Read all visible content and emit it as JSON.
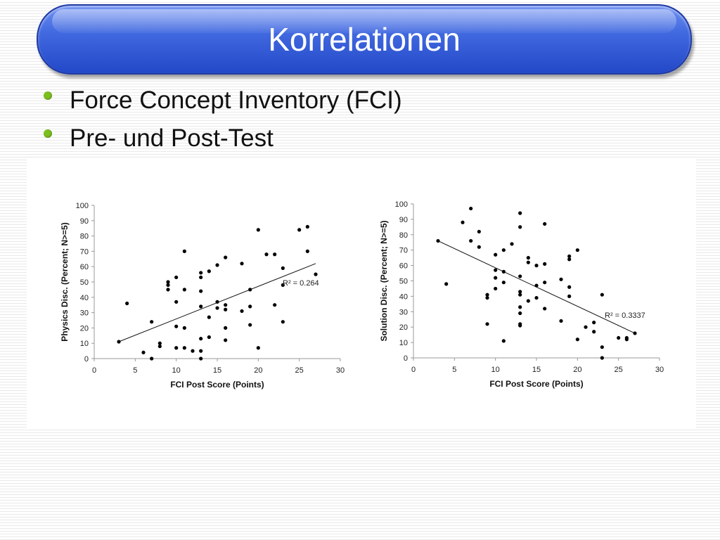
{
  "slide": {
    "title": "Korrelationen",
    "bullets": [
      "Force Concept Inventory (FCI)",
      "Pre- und Post-Test"
    ],
    "bullet_color": "#7dbf1f",
    "banner_color": "#3a5fd8"
  },
  "chart_data": [
    {
      "type": "scatter",
      "title": "",
      "xlabel": "FCI Post Score (Points)",
      "ylabel": "Physics Disc. (Percent; N>=5)",
      "xlim": [
        0,
        30
      ],
      "ylim": [
        0,
        100
      ],
      "xticks": [
        0,
        5,
        10,
        15,
        20,
        25,
        30
      ],
      "yticks": [
        0,
        10,
        20,
        30,
        40,
        50,
        60,
        70,
        80,
        90,
        100
      ],
      "grid": false,
      "annotation": "R² = 0.264",
      "trendline": {
        "x": [
          3,
          27
        ],
        "y": [
          11,
          62
        ]
      },
      "points": [
        [
          3,
          11
        ],
        [
          4,
          36
        ],
        [
          6,
          4
        ],
        [
          7,
          0
        ],
        [
          7,
          24
        ],
        [
          8,
          8
        ],
        [
          8,
          10
        ],
        [
          9,
          45
        ],
        [
          9,
          48
        ],
        [
          9,
          50
        ],
        [
          10,
          21
        ],
        [
          10,
          37
        ],
        [
          10,
          53
        ],
        [
          10,
          7
        ],
        [
          11,
          70
        ],
        [
          11,
          45
        ],
        [
          11,
          20
        ],
        [
          11,
          7
        ],
        [
          12,
          5
        ],
        [
          13,
          56
        ],
        [
          13,
          53
        ],
        [
          13,
          44
        ],
        [
          13,
          34
        ],
        [
          13,
          13
        ],
        [
          13,
          5
        ],
        [
          13,
          0
        ],
        [
          14,
          57
        ],
        [
          14,
          27
        ],
        [
          14,
          14
        ],
        [
          15,
          61
        ],
        [
          15,
          37
        ],
        [
          15,
          33
        ],
        [
          16,
          66
        ],
        [
          16,
          35
        ],
        [
          16,
          32
        ],
        [
          16,
          20
        ],
        [
          16,
          12
        ],
        [
          18,
          62
        ],
        [
          18,
          31
        ],
        [
          19,
          45
        ],
        [
          19,
          34
        ],
        [
          19,
          22
        ],
        [
          20,
          84
        ],
        [
          20,
          7
        ],
        [
          21,
          68
        ],
        [
          22,
          68
        ],
        [
          22,
          35
        ],
        [
          23,
          59
        ],
        [
          23,
          48
        ],
        [
          23,
          24
        ],
        [
          25,
          84
        ],
        [
          26,
          86
        ],
        [
          26,
          70
        ],
        [
          27,
          55
        ]
      ]
    },
    {
      "type": "scatter",
      "title": "",
      "xlabel": "FCI Post Score (Points)",
      "ylabel": "Solution Disc. (Percent; N>=5)",
      "xlim": [
        0,
        30
      ],
      "ylim": [
        0,
        100
      ],
      "xticks": [
        0,
        5,
        10,
        15,
        20,
        25,
        30
      ],
      "yticks": [
        0,
        10,
        20,
        30,
        40,
        50,
        60,
        70,
        80,
        90,
        100
      ],
      "grid": false,
      "annotation": "R² = 0.3337",
      "trendline": {
        "x": [
          3,
          27
        ],
        "y": [
          76,
          16
        ]
      },
      "points": [
        [
          3,
          76
        ],
        [
          4,
          48
        ],
        [
          6,
          88
        ],
        [
          7,
          97
        ],
        [
          7,
          76
        ],
        [
          8,
          82
        ],
        [
          8,
          72
        ],
        [
          9,
          41
        ],
        [
          9,
          39
        ],
        [
          9,
          22
        ],
        [
          10,
          67
        ],
        [
          10,
          57
        ],
        [
          10,
          52
        ],
        [
          10,
          45
        ],
        [
          11,
          70
        ],
        [
          11,
          56
        ],
        [
          11,
          49
        ],
        [
          11,
          11
        ],
        [
          12,
          74
        ],
        [
          13,
          94
        ],
        [
          13,
          85
        ],
        [
          13,
          53
        ],
        [
          13,
          43
        ],
        [
          13,
          41
        ],
        [
          13,
          33
        ],
        [
          13,
          29
        ],
        [
          13,
          22
        ],
        [
          13,
          21
        ],
        [
          14,
          65
        ],
        [
          14,
          62
        ],
        [
          14,
          37
        ],
        [
          15,
          60
        ],
        [
          15,
          47
        ],
        [
          15,
          39
        ],
        [
          16,
          87
        ],
        [
          16,
          61
        ],
        [
          16,
          49
        ],
        [
          16,
          32
        ],
        [
          18,
          51
        ],
        [
          18,
          24
        ],
        [
          19,
          66
        ],
        [
          19,
          64
        ],
        [
          19,
          46
        ],
        [
          19,
          40
        ],
        [
          20,
          70
        ],
        [
          20,
          12
        ],
        [
          21,
          20
        ],
        [
          22,
          23
        ],
        [
          22,
          17
        ],
        [
          23,
          41
        ],
        [
          23,
          7
        ],
        [
          23,
          0
        ],
        [
          25,
          13
        ],
        [
          26,
          13
        ],
        [
          26,
          12
        ],
        [
          27,
          16
        ]
      ]
    }
  ]
}
